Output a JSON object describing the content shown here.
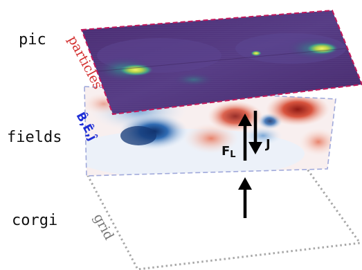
{
  "layers": {
    "top_label": "pic",
    "middle_label": "fields",
    "bottom_label": "corgi"
  },
  "annotations": {
    "particles": "particles",
    "fields_vars": "B̂,Ê,ĵ",
    "grid": "grid",
    "force_main": "F",
    "force_sub": "L",
    "current": "J"
  },
  "colors": {
    "particles_border": "#c2185b",
    "particles_label": "#d32f2f",
    "fields_border": "#9fa8da",
    "fields_label": "#1f2fd6",
    "grid_border": "#a8a8a8",
    "plasma_dark": "#4a2a6e",
    "plasma_mid": "#5a3f8a",
    "hot": "#e2e04a",
    "field_red": "#c0392b",
    "field_blue": "#1f4e9a"
  },
  "icons": {
    "up_arrow": "arrow-up-icon",
    "down_arrow": "arrow-down-icon"
  }
}
